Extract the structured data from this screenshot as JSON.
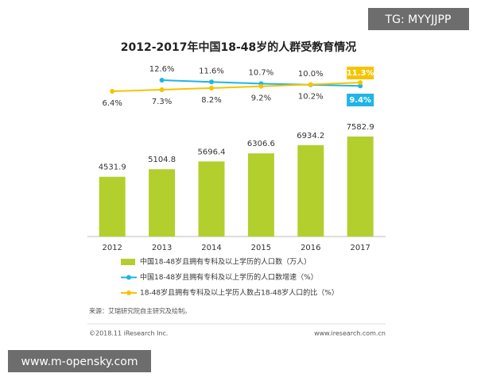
{
  "chart_data": {
    "type": "bar",
    "title": "2012-2017年中国18-48岁的人群受教育情况",
    "categories": [
      "2012",
      "2013",
      "2014",
      "2015",
      "2016",
      "2017"
    ],
    "series": [
      {
        "name": "中国18-48岁且拥有专科及以上学历的人口数（万人）",
        "type": "bar",
        "color": "#b3cf2e",
        "values": [
          4531.9,
          5104.8,
          5696.4,
          6306.6,
          6934.2,
          7582.9
        ]
      },
      {
        "name": "中国18-48岁且拥有专科及以上学历的人口数增速（%）",
        "type": "line",
        "color": "#1fb5e6",
        "values": [
          null,
          12.6,
          11.6,
          10.7,
          10.0,
          9.4
        ],
        "value_labels": [
          null,
          "12.6%",
          "11.6%",
          "10.7%",
          "10.0%",
          "9.4%"
        ]
      },
      {
        "name": "18-48岁且拥有专科及以上学历人数占18-48岁人口的比（%）",
        "type": "line",
        "color": "#f5c400",
        "values": [
          6.4,
          7.3,
          8.2,
          9.2,
          10.2,
          11.3
        ],
        "value_labels": [
          "6.4%",
          "7.3%",
          "8.2%",
          "9.2%",
          "10.2%",
          "11.3%"
        ]
      }
    ],
    "source": "来源：艾瑞研究院自主研究及绘制。",
    "copyright": "©2018.11 iResearch Inc.",
    "website": "www.iresearch.com.cn",
    "watermarks": [
      "TG: MYYJJPP",
      "www.m-opensky.com"
    ]
  }
}
